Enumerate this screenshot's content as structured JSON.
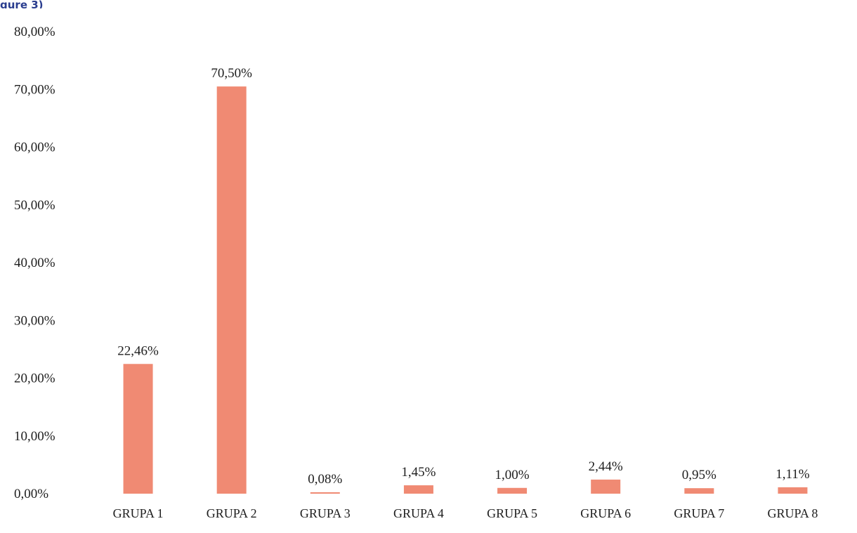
{
  "chart_data": {
    "type": "bar",
    "title_fragment": "gure 3)",
    "categories": [
      "GRUPA 1",
      "GRUPA 2",
      "GRUPA 3",
      "GRUPA 4",
      "GRUPA 5",
      "GRUPA 6",
      "GRUPA 7",
      "GRUPA 8"
    ],
    "values": [
      22.46,
      70.5,
      0.08,
      1.45,
      1.0,
      2.44,
      0.95,
      1.11
    ],
    "data_labels": [
      "22,46%",
      "70,50%",
      "0,08%",
      "1,45%",
      "1,00%",
      "2,44%",
      "0,95%",
      "1,11%"
    ],
    "y_ticks": [
      0,
      10,
      20,
      30,
      40,
      50,
      60,
      70,
      80
    ],
    "y_tick_labels": [
      "0,00%",
      "10,00%",
      "20,00%",
      "30,00%",
      "40,00%",
      "50,00%",
      "60,00%",
      "70,00%",
      "80,00%"
    ],
    "ylim": [
      0,
      80
    ],
    "xlabel": "",
    "ylabel": "",
    "grid": false,
    "legend": "none",
    "bar_color": "#f08a73"
  }
}
